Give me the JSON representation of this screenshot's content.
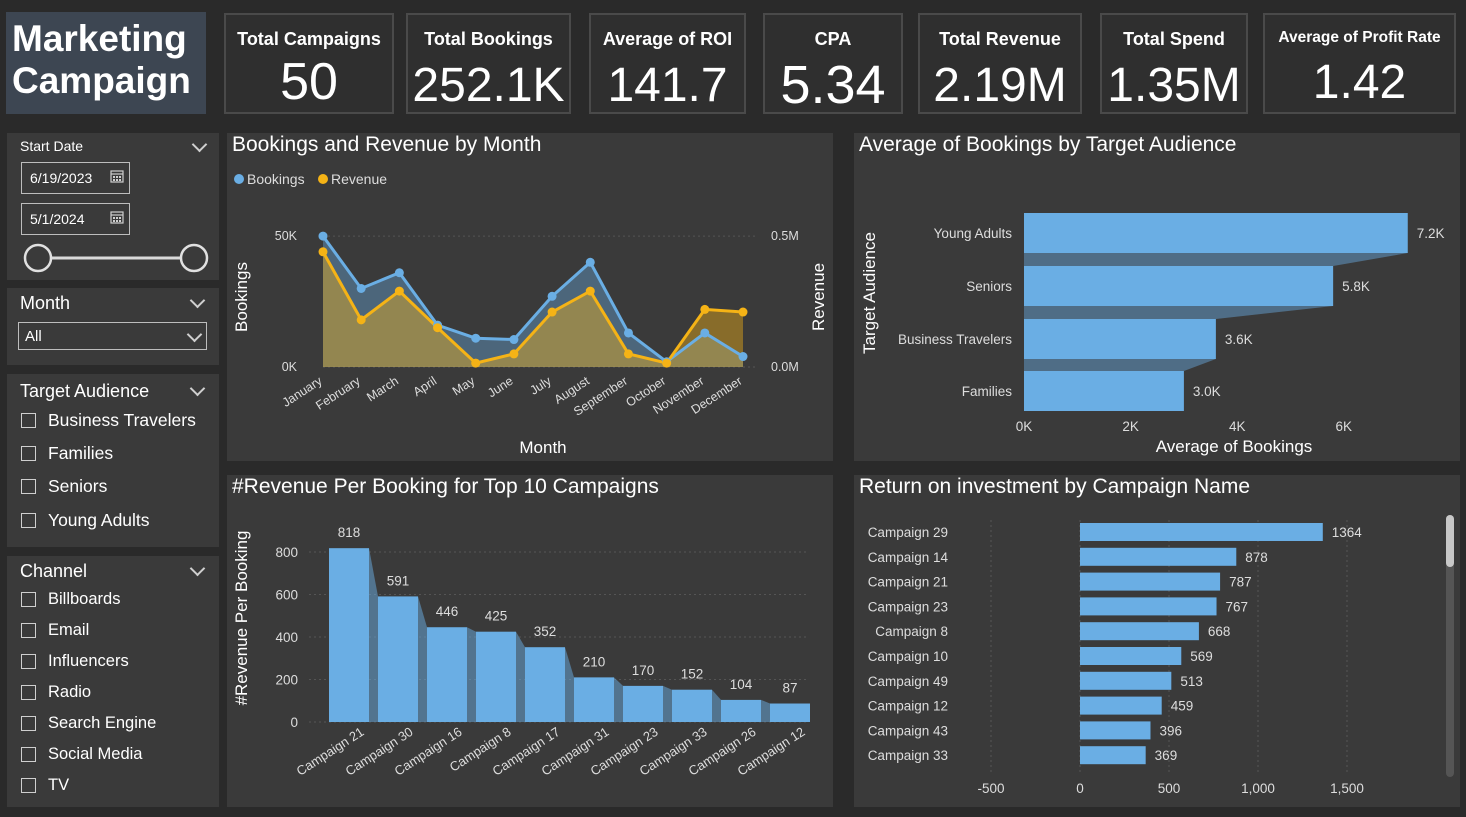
{
  "title": "Marketing Campaign",
  "kpis": [
    {
      "label": "Total Campaigns",
      "value": "50"
    },
    {
      "label": "Total Bookings",
      "value": "252.1K"
    },
    {
      "label": "Average of ROI",
      "value": "141.7"
    },
    {
      "label": "CPA",
      "value": "5.34"
    },
    {
      "label": "Total Revenue",
      "value": "2.19M"
    },
    {
      "label": "Total Spend",
      "value": "1.35M"
    },
    {
      "label": "Average of Profit Rate",
      "value": "1.42"
    }
  ],
  "filters": {
    "date": {
      "label": "Start Date",
      "start": "6/19/2023",
      "end": "5/1/2024"
    },
    "month": {
      "label": "Month",
      "selected": "All"
    },
    "audience": {
      "label": "Target Audience",
      "options": [
        "Business Travelers",
        "Families",
        "Seniors",
        "Young Adults"
      ]
    },
    "channel": {
      "label": "Channel",
      "options": [
        "Billboards",
        "Email",
        "Influencers",
        "Radio",
        "Search Engine",
        "Social Media",
        "TV"
      ]
    }
  },
  "colors": {
    "blue": "#6aaee4",
    "orange": "#f5b316",
    "bg": "#2a2a2a",
    "panel": "#3a3a3a"
  },
  "chart_data": [
    {
      "type": "area",
      "title": "Bookings and Revenue by Month",
      "legend": [
        "Bookings",
        "Revenue"
      ],
      "xlabel": "Month",
      "ylabel": "Bookings",
      "y2label": "Revenue",
      "categories": [
        "January",
        "February",
        "March",
        "April",
        "May",
        "June",
        "July",
        "August",
        "September",
        "October",
        "November",
        "December"
      ],
      "series": [
        {
          "name": "Bookings",
          "axis": "left",
          "values": [
            50000,
            30000,
            36000,
            16000,
            11000,
            10500,
            27000,
            40000,
            13000,
            2000,
            13000,
            4000
          ]
        },
        {
          "name": "Revenue",
          "axis": "right",
          "values": [
            440000,
            180000,
            290000,
            150000,
            15000,
            50000,
            210000,
            290000,
            50000,
            15000,
            220000,
            210000
          ]
        }
      ],
      "ylim": [
        0,
        55000
      ],
      "y2lim": [
        0,
        550000
      ],
      "yticks": [
        "0K",
        "50K"
      ],
      "y2ticks": [
        "0.0M",
        "0.5M"
      ]
    },
    {
      "type": "bar",
      "title": "Average of Bookings by Target Audience",
      "xlabel": "Average of Bookings",
      "ylabel": "Target Audience",
      "categories": [
        "Young Adults",
        "Seniors",
        "Business Travelers",
        "Families"
      ],
      "values": [
        7200,
        5800,
        3600,
        3000
      ],
      "labels": [
        "7.2K",
        "5.8K",
        "3.6K",
        "3.0K"
      ],
      "xlim": [
        0,
        8000
      ],
      "xticks": [
        "0K",
        "2K",
        "4K",
        "6K"
      ]
    },
    {
      "type": "bar",
      "title": "#Revenue Per Booking for Top 10 Campaigns",
      "ylabel": "#Revenue Per Booking",
      "categories": [
        "Campaign 21",
        "Campaign 30",
        "Campaign 16",
        "Campaign 8",
        "Campaign 17",
        "Campaign 31",
        "Campaign 23",
        "Campaign 33",
        "Campaign 26",
        "Campaign 12"
      ],
      "values": [
        818,
        591,
        446,
        425,
        352,
        210,
        170,
        152,
        104,
        87
      ],
      "ylim": [
        0,
        880
      ],
      "yticks": [
        0,
        200,
        400,
        600,
        800
      ]
    },
    {
      "type": "bar",
      "title": "Return on investment by Campaign Name",
      "categories": [
        "Campaign 29",
        "Campaign 14",
        "Campaign 21",
        "Campaign 23",
        "Campaign 8",
        "Campaign 10",
        "Campaign 49",
        "Campaign 12",
        "Campaign 43",
        "Campaign 33"
      ],
      "values": [
        1364,
        878,
        787,
        767,
        668,
        569,
        513,
        459,
        396,
        369
      ],
      "xlim": [
        -500,
        1500
      ],
      "xticks": [
        "-500",
        "0",
        "500",
        "1,000",
        "1,500"
      ]
    }
  ]
}
